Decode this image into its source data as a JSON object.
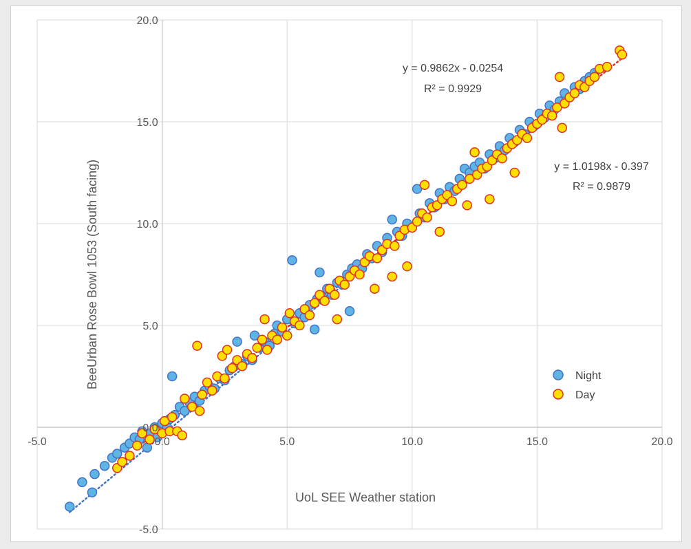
{
  "chart_data": {
    "type": "scatter",
    "title": "",
    "xlabel": "UoL SEE Weather station",
    "ylabel": "BeeUrban Rose Bowl 1053 (South facing)",
    "xlim": [
      -5,
      20
    ],
    "ylim": [
      -5,
      20
    ],
    "x_ticks": [
      "-5.0",
      "0.0",
      "5.0",
      "10.0",
      "15.0",
      "20.0"
    ],
    "y_ticks": [
      "-5.0",
      "0.0",
      "5.0",
      "10.0",
      "15.0",
      "20.0"
    ],
    "grid": true,
    "legend": "right",
    "series": [
      {
        "name": "Night",
        "fill": "#5fb4e6",
        "stroke": "#4472c4",
        "trendline": {
          "slope": 1.0198,
          "intercept": -0.397,
          "color": "#4472c4",
          "x_range": [
            -3.7,
            17.3
          ]
        },
        "equation": "y = 1.0198x - 0.397",
        "r2": "R² = 0.9879",
        "points": [
          [
            -3.7,
            -3.9
          ],
          [
            -3.2,
            -2.7
          ],
          [
            -2.8,
            -3.2
          ],
          [
            -2.7,
            -2.3
          ],
          [
            -2.3,
            -1.9
          ],
          [
            -2.0,
            -1.5
          ],
          [
            -1.8,
            -1.3
          ],
          [
            -1.5,
            -1.0
          ],
          [
            -1.3,
            -0.8
          ],
          [
            -1.1,
            -0.5
          ],
          [
            -0.9,
            -0.6
          ],
          [
            -0.8,
            -0.2
          ],
          [
            -0.6,
            -1.0
          ],
          [
            -0.5,
            -0.3
          ],
          [
            -0.3,
            0.0
          ],
          [
            -0.2,
            -0.5
          ],
          [
            0.0,
            0.2
          ],
          [
            0.2,
            0.0
          ],
          [
            0.3,
            0.4
          ],
          [
            0.5,
            0.6
          ],
          [
            0.4,
            2.5
          ],
          [
            0.7,
            1.0
          ],
          [
            0.9,
            0.8
          ],
          [
            1.1,
            1.2
          ],
          [
            1.3,
            1.5
          ],
          [
            1.5,
            1.3
          ],
          [
            1.7,
            1.8
          ],
          [
            1.9,
            2.0
          ],
          [
            2.1,
            1.9
          ],
          [
            2.3,
            2.4
          ],
          [
            2.5,
            2.3
          ],
          [
            2.7,
            2.8
          ],
          [
            2.9,
            3.0
          ],
          [
            3.0,
            4.2
          ],
          [
            3.2,
            3.1
          ],
          [
            3.4,
            3.5
          ],
          [
            3.6,
            3.3
          ],
          [
            3.7,
            4.5
          ],
          [
            3.9,
            3.9
          ],
          [
            4.1,
            4.2
          ],
          [
            4.3,
            4.0
          ],
          [
            4.5,
            4.6
          ],
          [
            4.6,
            5.0
          ],
          [
            4.8,
            4.7
          ],
          [
            5.0,
            5.3
          ],
          [
            5.2,
            8.2
          ],
          [
            5.3,
            5.1
          ],
          [
            5.5,
            5.6
          ],
          [
            5.7,
            5.4
          ],
          [
            5.9,
            6.0
          ],
          [
            6.1,
            4.8
          ],
          [
            6.2,
            6.3
          ],
          [
            6.3,
            7.6
          ],
          [
            6.4,
            6.4
          ],
          [
            6.6,
            6.8
          ],
          [
            6.8,
            6.5
          ],
          [
            7.0,
            7.1
          ],
          [
            7.2,
            7.0
          ],
          [
            7.4,
            7.5
          ],
          [
            7.5,
            5.7
          ],
          [
            7.6,
            7.8
          ],
          [
            7.8,
            8.0
          ],
          [
            8.0,
            7.8
          ],
          [
            8.2,
            8.5
          ],
          [
            8.4,
            8.3
          ],
          [
            8.6,
            8.9
          ],
          [
            8.8,
            8.6
          ],
          [
            9.0,
            9.3
          ],
          [
            9.2,
            10.2
          ],
          [
            9.4,
            9.6
          ],
          [
            9.6,
            9.4
          ],
          [
            9.8,
            10.0
          ],
          [
            10.0,
            9.8
          ],
          [
            10.2,
            11.7
          ],
          [
            10.3,
            10.5
          ],
          [
            10.5,
            10.3
          ],
          [
            10.7,
            11.0
          ],
          [
            10.9,
            10.8
          ],
          [
            11.1,
            11.5
          ],
          [
            11.3,
            11.2
          ],
          [
            11.5,
            11.8
          ],
          [
            11.7,
            11.6
          ],
          [
            11.9,
            12.2
          ],
          [
            12.1,
            12.7
          ],
          [
            12.3,
            12.5
          ],
          [
            12.5,
            12.8
          ],
          [
            12.7,
            13.0
          ],
          [
            12.9,
            12.7
          ],
          [
            13.1,
            13.4
          ],
          [
            13.3,
            13.2
          ],
          [
            13.5,
            13.8
          ],
          [
            13.7,
            13.6
          ],
          [
            13.9,
            14.2
          ],
          [
            14.1,
            14.0
          ],
          [
            14.3,
            14.6
          ],
          [
            14.5,
            14.4
          ],
          [
            14.7,
            15.0
          ],
          [
            14.9,
            14.8
          ],
          [
            15.1,
            15.4
          ],
          [
            15.3,
            15.2
          ],
          [
            15.5,
            15.8
          ],
          [
            15.7,
            15.6
          ],
          [
            15.9,
            16.0
          ],
          [
            16.1,
            16.4
          ],
          [
            16.3,
            16.2
          ],
          [
            16.5,
            16.7
          ],
          [
            16.7,
            16.6
          ],
          [
            16.9,
            17.0
          ],
          [
            17.1,
            17.2
          ],
          [
            17.3,
            17.4
          ]
        ]
      },
      {
        "name": "Day",
        "fill": "#ffdf00",
        "stroke": "#e03020",
        "trendline": {
          "slope": 0.9862,
          "intercept": -0.0254,
          "color": "#e03020",
          "x_range": [
            -1.0,
            18.5
          ]
        },
        "equation": "y = 0.9862x - 0.0254",
        "r2": "R² = 0.9929",
        "points": [
          [
            -1.8,
            -2.0
          ],
          [
            -1.6,
            -1.7
          ],
          [
            -1.3,
            -1.4
          ],
          [
            -1.0,
            -0.9
          ],
          [
            -0.8,
            -0.3
          ],
          [
            -0.5,
            -0.6
          ],
          [
            -0.3,
            -0.1
          ],
          [
            0.0,
            -0.3
          ],
          [
            0.1,
            0.3
          ],
          [
            0.3,
            -0.2
          ],
          [
            0.4,
            0.5
          ],
          [
            0.6,
            -0.2
          ],
          [
            0.8,
            -0.4
          ],
          [
            0.9,
            1.4
          ],
          [
            1.2,
            1.0
          ],
          [
            1.4,
            4.0
          ],
          [
            1.5,
            0.8
          ],
          [
            1.6,
            1.6
          ],
          [
            1.8,
            2.2
          ],
          [
            2.0,
            1.8
          ],
          [
            2.2,
            2.5
          ],
          [
            2.4,
            3.5
          ],
          [
            2.5,
            2.4
          ],
          [
            2.6,
            3.8
          ],
          [
            2.8,
            2.9
          ],
          [
            3.0,
            3.3
          ],
          [
            3.2,
            3.0
          ],
          [
            3.4,
            3.6
          ],
          [
            3.6,
            3.4
          ],
          [
            3.8,
            3.9
          ],
          [
            4.0,
            4.3
          ],
          [
            4.1,
            5.3
          ],
          [
            4.2,
            3.8
          ],
          [
            4.4,
            4.5
          ],
          [
            4.6,
            4.3
          ],
          [
            4.8,
            4.9
          ],
          [
            5.0,
            4.5
          ],
          [
            5.1,
            5.6
          ],
          [
            5.3,
            5.2
          ],
          [
            5.5,
            5.0
          ],
          [
            5.7,
            5.8
          ],
          [
            5.9,
            5.5
          ],
          [
            6.1,
            6.1
          ],
          [
            6.3,
            6.5
          ],
          [
            6.5,
            6.2
          ],
          [
            6.7,
            6.8
          ],
          [
            6.9,
            6.5
          ],
          [
            7.0,
            5.3
          ],
          [
            7.1,
            7.2
          ],
          [
            7.3,
            7.0
          ],
          [
            7.5,
            7.4
          ],
          [
            7.7,
            7.7
          ],
          [
            7.9,
            7.5
          ],
          [
            8.1,
            8.1
          ],
          [
            8.3,
            8.4
          ],
          [
            8.5,
            6.8
          ],
          [
            8.6,
            8.3
          ],
          [
            8.8,
            8.7
          ],
          [
            9.0,
            9.0
          ],
          [
            9.2,
            7.4
          ],
          [
            9.3,
            8.9
          ],
          [
            9.5,
            9.4
          ],
          [
            9.7,
            9.7
          ],
          [
            9.8,
            7.9
          ],
          [
            10.0,
            9.8
          ],
          [
            10.2,
            10.1
          ],
          [
            10.4,
            10.5
          ],
          [
            10.5,
            11.9
          ],
          [
            10.6,
            10.3
          ],
          [
            10.8,
            10.8
          ],
          [
            11.0,
            10.9
          ],
          [
            11.1,
            9.6
          ],
          [
            11.2,
            11.2
          ],
          [
            11.4,
            11.4
          ],
          [
            11.6,
            11.1
          ],
          [
            11.8,
            11.7
          ],
          [
            12.0,
            11.9
          ],
          [
            12.2,
            10.9
          ],
          [
            12.3,
            12.2
          ],
          [
            12.5,
            13.5
          ],
          [
            12.6,
            12.4
          ],
          [
            12.8,
            12.7
          ],
          [
            13.0,
            12.8
          ],
          [
            13.1,
            11.2
          ],
          [
            13.2,
            13.1
          ],
          [
            13.4,
            13.4
          ],
          [
            13.6,
            13.2
          ],
          [
            13.8,
            13.7
          ],
          [
            14.0,
            13.9
          ],
          [
            14.1,
            12.5
          ],
          [
            14.2,
            14.1
          ],
          [
            14.4,
            14.4
          ],
          [
            14.6,
            14.2
          ],
          [
            14.8,
            14.7
          ],
          [
            15.0,
            14.9
          ],
          [
            15.2,
            15.1
          ],
          [
            15.4,
            15.4
          ],
          [
            15.6,
            15.3
          ],
          [
            15.8,
            15.7
          ],
          [
            15.9,
            17.2
          ],
          [
            16.0,
            14.7
          ],
          [
            16.1,
            15.9
          ],
          [
            16.3,
            16.2
          ],
          [
            16.5,
            16.4
          ],
          [
            16.7,
            16.8
          ],
          [
            16.9,
            16.7
          ],
          [
            17.1,
            17.0
          ],
          [
            17.3,
            17.2
          ],
          [
            17.5,
            17.6
          ],
          [
            17.8,
            17.7
          ],
          [
            18.3,
            18.5
          ],
          [
            18.4,
            18.3
          ]
        ]
      }
    ]
  }
}
